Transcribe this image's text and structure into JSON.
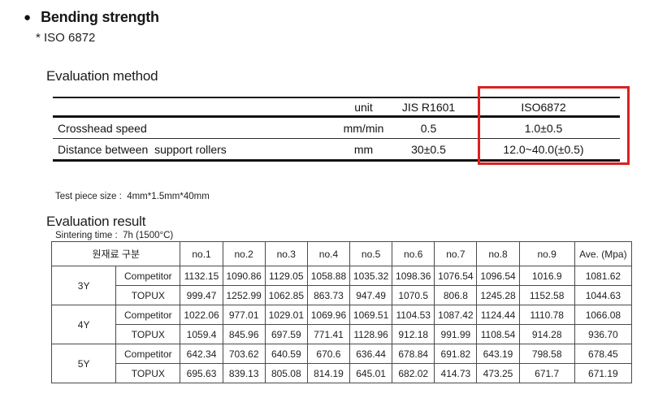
{
  "header": {
    "title": "Bending strength",
    "subtitle": "* ISO 6872"
  },
  "method": {
    "heading": "Evaluation method",
    "table": {
      "columns": [
        "",
        "unit",
        "JIS R1601",
        "ISO6872"
      ],
      "rows": [
        {
          "label": "Crosshead speed",
          "unit": "mm/min",
          "jis": "0.5",
          "iso": "1.0±0.5"
        },
        {
          "label": "Distance between  support rollers",
          "unit": "mm",
          "jis": "30±0.5",
          "iso": "12.0~40.0(±0.5)"
        }
      ],
      "highlight_color": "#d92121",
      "highlighted_column": "ISO6872"
    },
    "notes": [
      "Test piece size :  4mm*1.5mm*40mm",
      "Sintering time :  7h (1500°C)"
    ]
  },
  "result": {
    "heading": "Evaluation result",
    "table": {
      "group_header": "원재료 구분",
      "columns": [
        "no.1",
        "no.2",
        "no.3",
        "no.4",
        "no.5",
        "no.6",
        "no.7",
        "no.8",
        "no.9",
        "Ave. (Mpa)"
      ],
      "groups": [
        {
          "name": "3Y",
          "series": [
            {
              "label": "Competitor",
              "values": [
                "1132.15",
                "1090.86",
                "1129.05",
                "1058.88",
                "1035.32",
                "1098.36",
                "1076.54",
                "1096.54",
                "1016.9",
                "1081.62"
              ]
            },
            {
              "label": "TOPUX",
              "values": [
                "999.47",
                "1252.99",
                "1062.85",
                "863.73",
                "947.49",
                "1070.5",
                "806.8",
                "1245.28",
                "1152.58",
                "1044.63"
              ]
            }
          ]
        },
        {
          "name": "4Y",
          "series": [
            {
              "label": "Competitor",
              "values": [
                "1022.06",
                "977.01",
                "1029.01",
                "1069.96",
                "1069.51",
                "1104.53",
                "1087.42",
                "1124.44",
                "1110.78",
                "1066.08"
              ]
            },
            {
              "label": "TOPUX",
              "values": [
                "1059.4",
                "845.96",
                "697.59",
                "771.41",
                "1128.96",
                "912.18",
                "991.99",
                "1108.54",
                "914.28",
                "936.70"
              ]
            }
          ]
        },
        {
          "name": "5Y",
          "series": [
            {
              "label": "Competitor",
              "values": [
                "642.34",
                "703.62",
                "640.59",
                "670.6",
                "636.44",
                "678.84",
                "691.82",
                "643.19",
                "798.58",
                "678.45"
              ]
            },
            {
              "label": "TOPUX",
              "values": [
                "695.63",
                "839.13",
                "805.08",
                "814.19",
                "645.01",
                "682.02",
                "414.73",
                "473.25",
                "671.7",
                "671.19"
              ]
            }
          ]
        }
      ]
    }
  }
}
